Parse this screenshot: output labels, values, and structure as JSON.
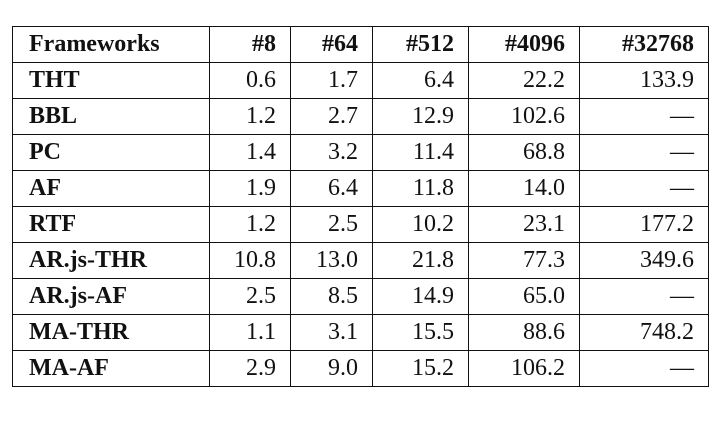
{
  "table": {
    "headers": [
      "Frameworks",
      "#8",
      "#64",
      "#512",
      "#4096",
      "#32768"
    ],
    "rows": [
      [
        "THT",
        "0.6",
        "1.7",
        "6.4",
        "22.2",
        "133.9"
      ],
      [
        "BBL",
        "1.2",
        "2.7",
        "12.9",
        "102.6",
        "—"
      ],
      [
        "PC",
        "1.4",
        "3.2",
        "11.4",
        "68.8",
        "—"
      ],
      [
        "AF",
        "1.9",
        "6.4",
        "11.8",
        "14.0",
        "—"
      ],
      [
        "RTF",
        "1.2",
        "2.5",
        "10.2",
        "23.1",
        "177.2"
      ],
      [
        "AR.js-THR",
        "10.8",
        "13.0",
        "21.8",
        "77.3",
        "349.6"
      ],
      [
        "AR.js-AF",
        "2.5",
        "8.5",
        "14.9",
        "65.0",
        "—"
      ],
      [
        "MA-THR",
        "1.1",
        "3.1",
        "15.5",
        "88.6",
        "748.2"
      ],
      [
        "MA-AF",
        "2.9",
        "9.0",
        "15.2",
        "106.2",
        "—"
      ]
    ]
  }
}
